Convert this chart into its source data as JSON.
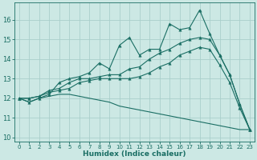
{
  "xlabel": "Humidex (Indice chaleur)",
  "bg_color": "#cce8e4",
  "grid_color": "#aacfcb",
  "line_color": "#1a6e64",
  "xlim": [
    -0.5,
    23.5
  ],
  "ylim": [
    9.8,
    16.9
  ],
  "yticks": [
    10,
    11,
    12,
    13,
    14,
    15,
    16
  ],
  "xticks": [
    0,
    1,
    2,
    3,
    4,
    5,
    6,
    7,
    8,
    9,
    10,
    11,
    12,
    13,
    14,
    15,
    16,
    17,
    18,
    19,
    20,
    21,
    22,
    23
  ],
  "series": [
    {
      "x": [
        0,
        1,
        2,
        3,
        4,
        5,
        6,
        7,
        8,
        9,
        10,
        11,
        12,
        13,
        14,
        15,
        16,
        17,
        18,
        19,
        20,
        21,
        22,
        23
      ],
      "y": [
        12.0,
        11.8,
        12.0,
        12.2,
        12.8,
        13.0,
        13.1,
        13.3,
        13.8,
        13.5,
        14.7,
        15.1,
        14.2,
        14.5,
        14.5,
        15.8,
        15.5,
        15.6,
        16.5,
        15.3,
        14.2,
        13.2,
        11.7,
        10.4
      ],
      "marker": true
    },
    {
      "x": [
        0,
        1,
        2,
        3,
        4,
        5,
        6,
        7,
        8,
        9,
        10,
        11,
        12,
        13,
        14,
        15,
        16,
        17,
        18,
        19,
        20,
        21,
        22,
        23
      ],
      "y": [
        12.0,
        12.0,
        12.1,
        12.4,
        12.5,
        12.8,
        13.0,
        13.0,
        13.1,
        13.2,
        13.2,
        13.5,
        13.6,
        14.0,
        14.3,
        14.5,
        14.8,
        15.0,
        15.1,
        15.0,
        14.2,
        13.2,
        11.7,
        10.4
      ],
      "marker": true
    },
    {
      "x": [
        0,
        1,
        2,
        3,
        4,
        5,
        6,
        7,
        8,
        9,
        10,
        11,
        12,
        13,
        14,
        15,
        16,
        17,
        18,
        19,
        20,
        21,
        22,
        23
      ],
      "y": [
        12.0,
        12.0,
        12.1,
        12.3,
        12.4,
        12.5,
        12.8,
        12.9,
        13.0,
        13.0,
        13.0,
        13.0,
        13.1,
        13.3,
        13.6,
        13.8,
        14.2,
        14.4,
        14.6,
        14.5,
        13.7,
        12.8,
        11.5,
        10.4
      ],
      "marker": true
    },
    {
      "x": [
        0,
        1,
        2,
        3,
        4,
        5,
        6,
        7,
        8,
        9,
        10,
        11,
        12,
        13,
        14,
        15,
        16,
        17,
        18,
        19,
        20,
        21,
        22,
        23
      ],
      "y": [
        12.0,
        11.8,
        12.0,
        12.1,
        12.2,
        12.2,
        12.1,
        12.0,
        11.9,
        11.8,
        11.6,
        11.5,
        11.4,
        11.3,
        11.2,
        11.1,
        11.0,
        10.9,
        10.8,
        10.7,
        10.6,
        10.5,
        10.4,
        10.4
      ],
      "marker": false
    }
  ]
}
